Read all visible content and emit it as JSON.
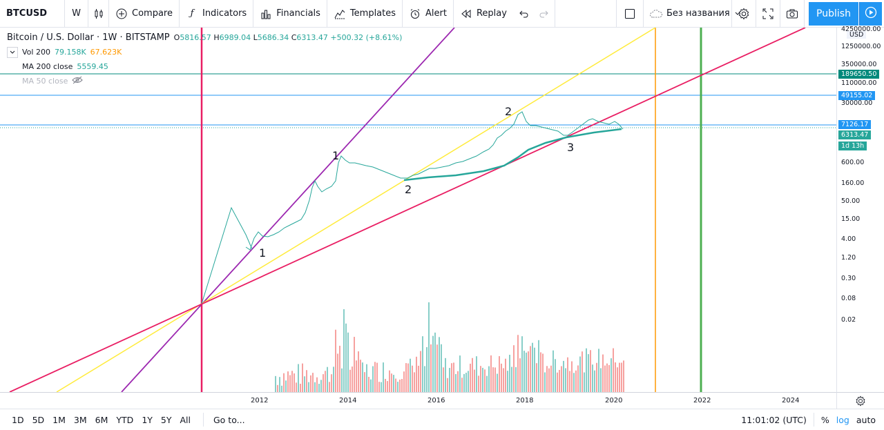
{
  "toolbar": {
    "symbol": "BTCUSD",
    "interval": "W",
    "compare": "Compare",
    "indicators": "Indicators",
    "financials": "Financials",
    "templates": "Templates",
    "alert": "Alert",
    "replay": "Replay",
    "layout_name": "Без названия",
    "publish": "Publish"
  },
  "legend": {
    "title": "Bitcoin / U.S. Dollar · 1W · BITSTAMP",
    "o_label": "O",
    "o_value": "5816.57",
    "h_label": "H",
    "h_value": "6989.04",
    "l_label": "L",
    "l_value": "5686.34",
    "c_label": "C",
    "c_value": "6313.47",
    "change": "+500.32 (+8.61%)",
    "vol_label": "Vol 200",
    "vol_value1": "79.158K",
    "vol_value2": "67.623K",
    "ma200_label": "MA 200 close",
    "ma200_value": "5559.45",
    "ma50_label": "MA 50 close"
  },
  "price_axis": {
    "currency": "USD",
    "ticks": [
      "4250000.00",
      "1250000.00",
      "350000.00",
      "110000.00",
      "30000.00",
      "600.00",
      "160.00",
      "50.00",
      "15.00",
      "4.00",
      "1.20",
      "0.30",
      "0.08",
      "0.02"
    ],
    "badge_189650": "189650.50",
    "badge_49155": "49155.02",
    "badge_7126": "7126.17",
    "badge_6313": "6313.47",
    "badge_countdown": "1d 13h"
  },
  "time_axis": {
    "labels": [
      "2012",
      "2014",
      "2016",
      "2018",
      "2020",
      "2022",
      "2024"
    ]
  },
  "annotations": {
    "a1": "1",
    "a2": "1",
    "a3": "2",
    "a4": "2",
    "a5": "3"
  },
  "bottom": {
    "ranges": [
      "1D",
      "5D",
      "1M",
      "3M",
      "6M",
      "YTD",
      "1Y",
      "5Y",
      "All"
    ],
    "goto": "Go to...",
    "clock": "11:01:02 (UTC)",
    "percent": "%",
    "log": "log",
    "auto": "auto"
  },
  "colors": {
    "accent": "#2196f3",
    "up": "#26a69a",
    "down": "#ef5350",
    "magenta": "#e91e63",
    "purple": "#9c27b0",
    "yellow": "#ffeb3b",
    "orange": "#ff9800",
    "green": "#4caf50",
    "teal_hline": "#00897b",
    "blue_hline": "#2196f3"
  }
}
